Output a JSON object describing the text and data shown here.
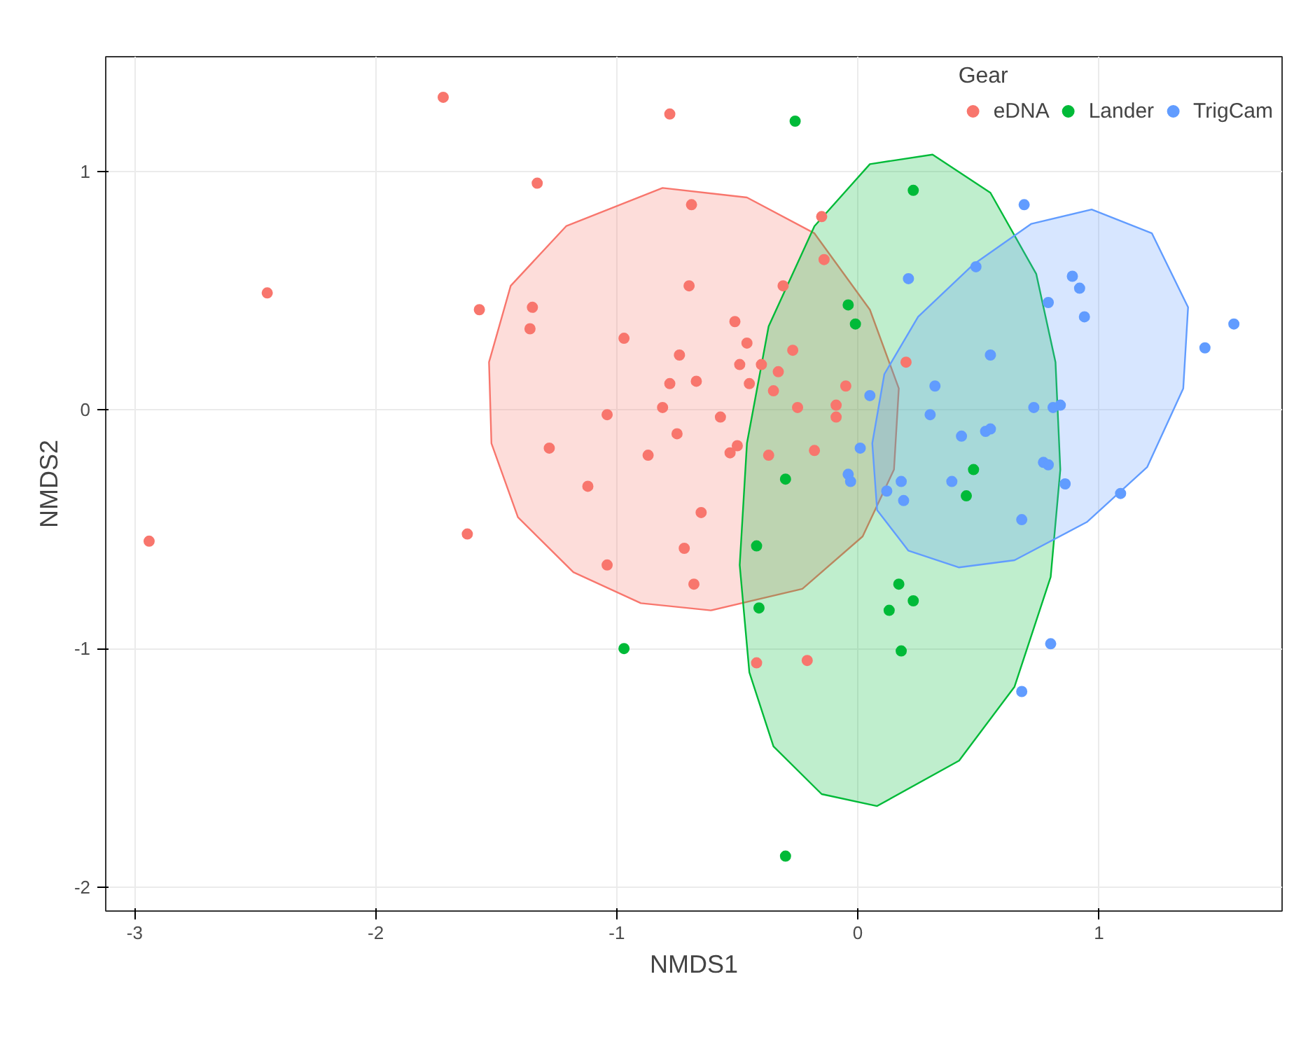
{
  "chart_data": {
    "type": "scatter",
    "xlabel": "NMDS1",
    "ylabel": "NMDS2",
    "legend_title": "Gear",
    "legend": "top right",
    "grid": true,
    "marker": "circle",
    "xlim": [
      -3.12,
      1.76
    ],
    "ylim": [
      -2.1,
      1.48
    ],
    "xticks": [
      -3,
      -2,
      -1,
      0,
      1
    ],
    "yticks": [
      -2,
      -1,
      0,
      1
    ],
    "series": [
      {
        "type": "area",
        "marker": "none",
        "color": "#f8766d",
        "x": [
          -0.81,
          -0.46,
          -0.18,
          0.05,
          0.17,
          0.15,
          0.02,
          -0.23,
          -0.61,
          -0.9,
          -1.18,
          -1.41,
          -1.52,
          -1.53,
          -1.44,
          -1.21
        ],
        "values": [
          0.93,
          0.89,
          0.74,
          0.42,
          0.09,
          -0.25,
          -0.53,
          -0.75,
          -0.84,
          -0.81,
          -0.68,
          -0.45,
          -0.14,
          0.2,
          0.52,
          0.77
        ]
      },
      {
        "type": "area",
        "marker": "none",
        "color": "#00ba38",
        "x": [
          0.31,
          0.55,
          0.74,
          0.82,
          0.84,
          0.8,
          0.65,
          0.42,
          0.08,
          -0.15,
          -0.35,
          -0.45,
          -0.49,
          -0.46,
          -0.37,
          -0.18,
          0.05
        ],
        "values": [
          1.07,
          0.91,
          0.57,
          0.2,
          -0.25,
          -0.7,
          -1.16,
          -1.47,
          -1.66,
          -1.61,
          -1.41,
          -1.1,
          -0.65,
          -0.14,
          0.35,
          0.77,
          1.03
        ]
      },
      {
        "type": "area",
        "marker": "none",
        "color": "#619cff",
        "x": [
          0.97,
          1.22,
          1.37,
          1.35,
          1.2,
          0.95,
          0.65,
          0.42,
          0.21,
          0.08,
          0.06,
          0.11,
          0.25,
          0.48,
          0.72
        ],
        "values": [
          0.84,
          0.74,
          0.43,
          0.09,
          -0.24,
          -0.47,
          -0.63,
          -0.66,
          -0.59,
          -0.42,
          -0.14,
          0.15,
          0.39,
          0.61,
          0.78
        ]
      },
      {
        "name": "eDNA",
        "color": "#f8766d",
        "x": [
          -1.72,
          -0.78,
          -1.33,
          -0.69,
          -2.45,
          -1.57,
          -1.35,
          -1.36,
          -0.97,
          -0.7,
          -0.15,
          -0.14,
          -0.31,
          -0.51,
          -0.46,
          -0.74,
          -0.49,
          -0.4,
          -0.27,
          -0.33,
          -0.78,
          -0.67,
          -0.45,
          -0.35,
          -0.05,
          -0.25,
          -0.09,
          -0.09,
          -1.04,
          -0.81,
          -0.57,
          -0.75,
          -1.28,
          -0.87,
          -0.53,
          -0.5,
          -0.37,
          -0.18,
          -1.12,
          -0.65,
          -1.62,
          -0.72,
          -1.04,
          -0.68,
          -0.42,
          -0.21,
          -2.94,
          0.2
        ],
        "values": [
          1.31,
          1.24,
          0.95,
          0.86,
          0.49,
          0.42,
          0.43,
          0.34,
          0.3,
          0.52,
          0.81,
          0.63,
          0.52,
          0.37,
          0.28,
          0.23,
          0.19,
          0.19,
          0.25,
          0.16,
          0.11,
          0.12,
          0.11,
          0.08,
          0.1,
          0.01,
          0.02,
          -0.03,
          -0.02,
          0.01,
          -0.03,
          -0.1,
          -0.16,
          -0.19,
          -0.18,
          -0.15,
          -0.19,
          -0.17,
          -0.32,
          -0.43,
          -0.52,
          -0.58,
          -0.65,
          -0.73,
          -1.06,
          -1.05,
          -0.55,
          0.2
        ]
      },
      {
        "name": "Lander",
        "color": "#00ba38",
        "x": [
          -0.26,
          0.23,
          -0.04,
          -0.01,
          -0.3,
          -0.42,
          -0.41,
          -0.97,
          0.48,
          0.45,
          0.17,
          0.23,
          0.13,
          0.18,
          -0.3
        ],
        "values": [
          1.21,
          0.92,
          0.44,
          0.36,
          -0.29,
          -0.57,
          -0.83,
          -1.0,
          -0.25,
          -0.36,
          -0.73,
          -0.8,
          -0.84,
          -1.01,
          -1.87
        ]
      },
      {
        "name": "TrigCam",
        "color": "#619cff",
        "x": [
          0.69,
          0.49,
          0.21,
          0.89,
          0.92,
          0.79,
          0.94,
          1.56,
          1.44,
          0.55,
          0.32,
          0.05,
          0.3,
          0.73,
          0.81,
          0.84,
          0.43,
          0.53,
          0.55,
          0.01,
          0.77,
          0.79,
          -0.04,
          -0.03,
          0.18,
          0.39,
          0.86,
          0.12,
          1.09,
          0.19,
          0.68,
          0.8,
          0.68
        ],
        "values": [
          0.86,
          0.6,
          0.55,
          0.56,
          0.51,
          0.45,
          0.39,
          0.36,
          0.26,
          0.23,
          0.1,
          0.06,
          -0.02,
          0.01,
          0.01,
          0.02,
          -0.11,
          -0.09,
          -0.08,
          -0.16,
          -0.22,
          -0.23,
          -0.27,
          -0.3,
          -0.3,
          -0.3,
          -0.31,
          -0.34,
          -0.35,
          -0.38,
          -0.46,
          -0.98,
          -1.18
        ]
      }
    ]
  }
}
